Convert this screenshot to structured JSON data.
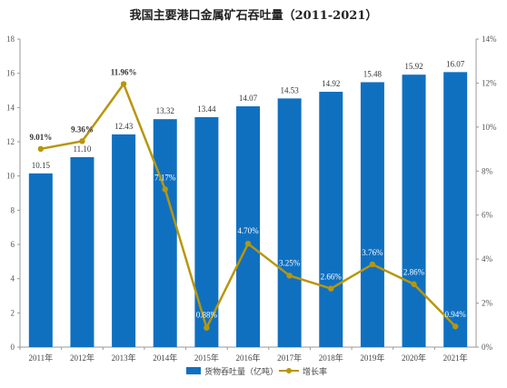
{
  "title": "我国主要港口金属矿石吞吐量（2011-2021）",
  "colors": {
    "bar": "#1070C0",
    "line": "#B8960C",
    "axis": "#999999",
    "label_dark": "#333333",
    "label_light": "#ffffff"
  },
  "chart_data": {
    "type": "bar",
    "categories": [
      "2011年",
      "2012年",
      "2013年",
      "2014年",
      "2015年",
      "2016年",
      "2017年",
      "2018年",
      "2019年",
      "2020年",
      "2021年"
    ],
    "series": [
      {
        "name": "货物吞吐量（亿吨）",
        "type": "bar",
        "axis": "left",
        "values": [
          10.15,
          11.1,
          12.43,
          13.32,
          13.44,
          14.07,
          14.53,
          14.92,
          15.48,
          15.92,
          16.07
        ],
        "labels": [
          "10.15",
          "11.10",
          "12.43",
          "13.32",
          "13.44",
          "14.07",
          "14.53",
          "14.92",
          "15.48",
          "15.92",
          "16.07"
        ]
      },
      {
        "name": "增长率",
        "type": "line",
        "axis": "right",
        "values": [
          9.01,
          9.36,
          11.96,
          7.17,
          0.88,
          4.7,
          3.25,
          2.66,
          3.76,
          2.86,
          0.94
        ],
        "labels": [
          "9.01%",
          "9.36%",
          "11.96%",
          "7.17%",
          "0.88%",
          "4.70%",
          "3.25%",
          "2.66%",
          "3.76%",
          "2.86%",
          "0.94%"
        ]
      }
    ],
    "ylim_left": [
      0,
      18
    ],
    "yticks_left": [
      "0",
      "2",
      "4",
      "6",
      "8",
      "10",
      "12",
      "14",
      "16",
      "18"
    ],
    "ylim_right": [
      0,
      14
    ],
    "yticks_right": [
      "0%",
      "2%",
      "4%",
      "6%",
      "8%",
      "10%",
      "12%",
      "14%"
    ],
    "legend_position": "bottom",
    "grid": false
  }
}
